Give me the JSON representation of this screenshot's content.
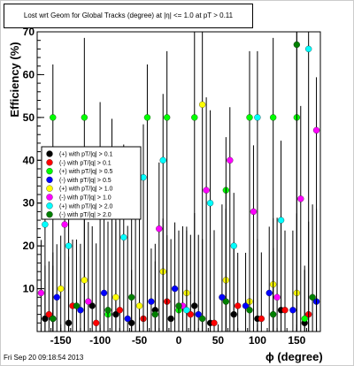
{
  "chart_data": {
    "type": "scatter",
    "title": "Lost wrt Geom for Global Tracks",
    "title_suffix": "(degree) at |η| <= 1.0 at pT > 0.11",
    "xlabel": "ϕ (degree)",
    "ylabel": "Efficiency (%)",
    "xlim": [
      -180,
      180
    ],
    "ylim": [
      0,
      70
    ],
    "xticks": [
      "-150",
      "-100",
      "-50",
      "0",
      "50",
      "100",
      "150"
    ],
    "yticks": [
      "10",
      "20",
      "30",
      "40",
      "50",
      "60",
      "70"
    ],
    "grid": false,
    "legend_position": "left-middle",
    "series": [
      {
        "name": "(+) with pT/|q| > 0.1",
        "color": "#000000",
        "x": [
          -170,
          -140,
          -110,
          -80,
          -60,
          -30,
          -10,
          20,
          40,
          70,
          100,
          130,
          160
        ],
        "y": [
          3,
          2,
          6,
          4,
          2,
          5,
          3,
          6,
          2,
          4,
          3,
          5,
          2
        ]
      },
      {
        "name": "(-) with pT/|q| > 0.1",
        "color": "#ff0000",
        "x": [
          -165,
          -135,
          -105,
          -75,
          -45,
          -15,
          15,
          45,
          75,
          105,
          135,
          165
        ],
        "y": [
          4,
          6,
          2,
          5,
          3,
          7,
          4,
          2,
          6,
          3,
          5,
          4
        ]
      },
      {
        "name": "(+) with pT/|q| > 0.5",
        "color": "#00ff00",
        "x": [
          -160,
          -160,
          -120,
          -90,
          -40,
          -15,
          0,
          20,
          60,
          90,
          120,
          150,
          160
        ],
        "y": [
          50,
          3,
          50,
          4,
          50,
          50,
          5,
          50,
          33,
          50,
          50,
          50,
          3
        ]
      },
      {
        "name": "(-) with pT/|q| > 0.5",
        "color": "#0000ff",
        "x": [
          -155,
          -125,
          -95,
          -65,
          -35,
          -5,
          25,
          55,
          85,
          115,
          145,
          175
        ],
        "y": [
          8,
          5,
          9,
          3,
          7,
          10,
          4,
          8,
          6,
          9,
          5,
          7
        ]
      },
      {
        "name": "(+) with pT/|q| > 1.0",
        "color": "#ffff00",
        "x": [
          -150,
          -120,
          -80,
          -50,
          -20,
          10,
          30,
          60,
          90,
          120,
          150
        ],
        "y": [
          10,
          12,
          8,
          6,
          14,
          9,
          53,
          12,
          7,
          11,
          9
        ]
      },
      {
        "name": "(-) with pT/|q| > 1.0",
        "color": "#ff00ff",
        "x": [
          -175,
          -145,
          -115,
          -85,
          -55,
          -25,
          5,
          35,
          65,
          95,
          125,
          155,
          175
        ],
        "y": [
          9,
          25,
          7,
          28,
          30,
          24,
          6,
          33,
          40,
          28,
          8,
          31,
          47
        ]
      },
      {
        "name": "(+) with pT/|q| > 2.0",
        "color": "#00ffff",
        "x": [
          -170,
          -140,
          -100,
          -70,
          -45,
          -20,
          10,
          40,
          70,
          100,
          130,
          165
        ],
        "y": [
          25,
          20,
          35,
          22,
          36,
          40,
          5,
          30,
          20,
          50,
          26,
          66
        ]
      },
      {
        "name": "(-) with pT/|q| > 2.0",
        "color": "#008000",
        "x": [
          -160,
          -130,
          -90,
          -60,
          -30,
          0,
          30,
          60,
          90,
          120,
          150,
          170
        ],
        "y": [
          3,
          6,
          5,
          8,
          4,
          6,
          3,
          7,
          5,
          4,
          67,
          8
        ]
      }
    ]
  },
  "footer": "Fri Sep 20 09:18:54 2013"
}
